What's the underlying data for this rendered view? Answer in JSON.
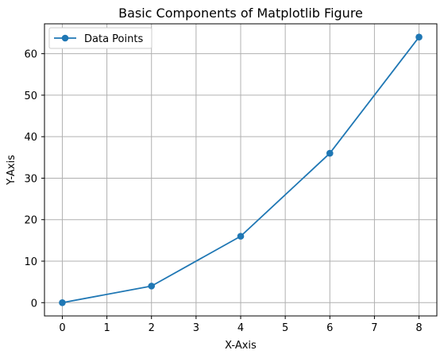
{
  "chart_data": {
    "type": "line",
    "title": "Basic Components of Matplotlib Figure",
    "xlabel": "X-Axis",
    "ylabel": "Y-Axis",
    "xlim": [
      -0.4,
      8.4
    ],
    "ylim": [
      -3.2,
      67.2
    ],
    "xticks": [
      0,
      1,
      2,
      3,
      4,
      5,
      6,
      7,
      8
    ],
    "yticks": [
      0,
      10,
      20,
      30,
      40,
      50,
      60
    ],
    "xtick_labels": [
      "0",
      "1",
      "2",
      "3",
      "4",
      "5",
      "6",
      "7",
      "8"
    ],
    "ytick_labels": [
      "0",
      "10",
      "20",
      "30",
      "40",
      "50",
      "60"
    ],
    "grid": true,
    "legend_position": "upper-left",
    "series": [
      {
        "name": "Data Points",
        "x": [
          0,
          2,
          4,
          6,
          8
        ],
        "y": [
          0,
          4,
          16,
          36,
          64
        ],
        "color": "#1f77b4",
        "marker": "circle"
      }
    ]
  }
}
